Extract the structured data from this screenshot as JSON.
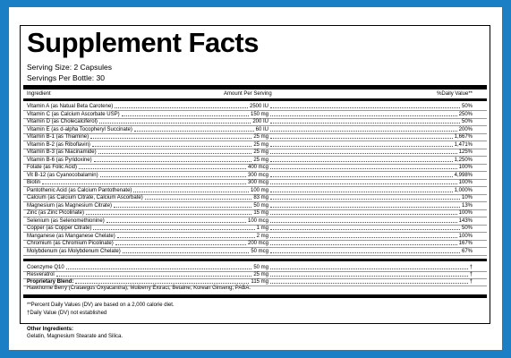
{
  "header": {
    "title": "Supplement Facts",
    "serving_size": "Serving Size: 2 Capsules",
    "servings_per_bottle": "Servings Per Bottle: 30"
  },
  "columns": [
    "Ingredient",
    "Amount Per Serving",
    "%Daily Value**"
  ],
  "rows": [
    [
      "Vitamin A (as Natual Beta Carotene)",
      "2500 IU",
      "50%"
    ],
    [
      "Vitamin C (as Calcium Ascorbate USP)",
      "150 mg",
      "250%"
    ],
    [
      "Vitamin D (as Cholecalciferol)",
      "200 IU",
      "50%"
    ],
    [
      "Vitamin E (as d-alpha Tocopheryl Succinate)",
      "60 IU",
      "200%"
    ],
    [
      "Vitamin B-1 (as Thiamine)",
      "25 mg",
      "1,667%"
    ],
    [
      "Vitamin B-2 (as Riboflavin)",
      "25 mg",
      "1,471%"
    ],
    [
      "Vitamin B-3 (as Niacinamide)",
      "25 mg",
      "125%"
    ],
    [
      "Vitamin B-6 (as Pyridoxine)",
      "25 mg",
      "1,250%"
    ],
    [
      "Folate (as Folic Acid)",
      "400 mcg",
      "100%"
    ],
    [
      "Vit B-12 (as Cyanocobalamin)",
      "300 mcg",
      "4,998%"
    ],
    [
      "Biotin",
      "300 mcg",
      "100%"
    ],
    [
      "Pantothenic Acid (as Calcium Pantothenate)",
      "100 mg",
      "1,000%"
    ],
    [
      "Calcium (as Calcium Citrate, Calcium Ascorbate)",
      "83 mg",
      "10%"
    ],
    [
      "Magnesium (as Magnesium Citrate)",
      "50 mg",
      "13%"
    ],
    [
      "Zinc (as Zinc Picolinate)",
      "15 mg",
      "100%"
    ],
    [
      "Selenium (as Selenomethionine)",
      "100 mcg",
      "143%"
    ],
    [
      "Copper (as Copper Citrate)",
      "1 mg",
      "50%"
    ],
    [
      "Manganese (as Manganese Chelate)",
      "2 mg",
      "100%"
    ],
    [
      "Chromium (as Chromium Picolinate)",
      "200 mcg",
      "167%"
    ],
    [
      "Molybdenum (as Molybdenum Chelate)",
      "50 mcg",
      "67%"
    ]
  ],
  "other_rows": [
    [
      "Coenzyme Q10",
      "50 mg",
      "†"
    ],
    [
      "Resveratrol",
      "25 mg",
      "†"
    ],
    [
      "Proprietary Blend:",
      "115 mg",
      "†"
    ]
  ],
  "blend_ingredients": "Hawthorne Berry (Crataegus Oxyacantha), Mulberry Extract, Betaine, Korean Ginseng, PABA.",
  "footnotes": [
    "**Percent Daily Values (DV) are based on a 2,000 calorie diet.",
    "†Daily Value (DV) not established"
  ],
  "other_ingredients": {
    "label": "Other Ingredients:",
    "text": "Gelatin, Magnesium Stearate and Silica."
  }
}
